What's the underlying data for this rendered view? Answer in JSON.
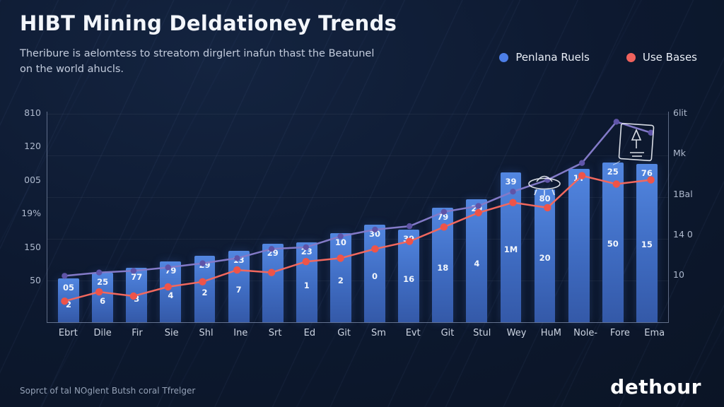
{
  "header": {
    "title": "HIBT Mining Deldationey Trends",
    "subtitle_line1": "Theribure is aelomtess to streatom dirglert inafun thast the Beatunel",
    "subtitle_line2": "on the world ahucls."
  },
  "legend": [
    {
      "label": "Penlana Ruels",
      "color": "#4d7fe8"
    },
    {
      "label": "Use Bases",
      "color": "#f0625d"
    }
  ],
  "footer": {
    "source": "Soprct of tal NOglent Butsh coral Tfrelger",
    "logo": "dethour"
  },
  "icons": {
    "sketch_badge": "ufo-badge-icon",
    "sketch_rocket": "rocket-frame-icon"
  },
  "chart_data": {
    "type": "bar",
    "overlay": "line",
    "title": "HIBT Mining Deldationey Trends",
    "grid": false,
    "legend_position": "top-right",
    "categories": [
      "Ebrt",
      "Dile",
      "Fir",
      "Sie",
      "Shl",
      "Ine",
      "Srt",
      "Ed",
      "Git",
      "Sm",
      "Evt",
      "Git",
      "Stul",
      "Wey",
      "HuM",
      "Nole-",
      "Fore",
      "Ema"
    ],
    "bar_series": {
      "name": "Penlana Ruels",
      "color": "#4472c8",
      "values": [
        52,
        59,
        65,
        72,
        79,
        85,
        93,
        95,
        106,
        116,
        110,
        136,
        146,
        178,
        158,
        182,
        190,
        188
      ],
      "top_labels": [
        "05",
        "25",
        "77",
        "79",
        "29",
        "13",
        "29",
        "23",
        "10",
        "30",
        "39",
        "79",
        "29",
        "39",
        "80",
        "1T",
        "25",
        "76"
      ],
      "inner_labels": [
        "2",
        "6",
        "3",
        "4",
        "2",
        "7",
        "",
        "1",
        "2",
        "0",
        "16",
        "18",
        "4",
        "1M",
        "20",
        "",
        "50",
        "15"
      ]
    },
    "line_series": [
      {
        "name": "trend",
        "color": "#837ac8",
        "marker_color": "#5f54a8",
        "values": [
          55,
          59,
          61,
          65,
          70,
          76,
          87,
          89,
          102,
          110,
          114,
          131,
          138,
          155,
          169,
          189,
          238,
          225
        ]
      },
      {
        "name": "Use Bases",
        "color": "#f2685e",
        "marker_color": "#ee5449",
        "values": [
          25,
          36,
          31,
          42,
          48,
          62,
          59,
          72,
          76,
          87,
          96,
          113,
          130,
          142,
          136,
          174,
          164,
          169
        ]
      }
    ],
    "ylim": [
      0,
      250
    ],
    "y_axis_left_labels": [
      "810",
      "120",
      "005",
      "19%",
      "150",
      "50"
    ],
    "y_axis_right_labels": [
      "6lit",
      "Mk",
      "1Bal",
      "14 0",
      "10"
    ],
    "xlabel": "",
    "ylabel": ""
  }
}
